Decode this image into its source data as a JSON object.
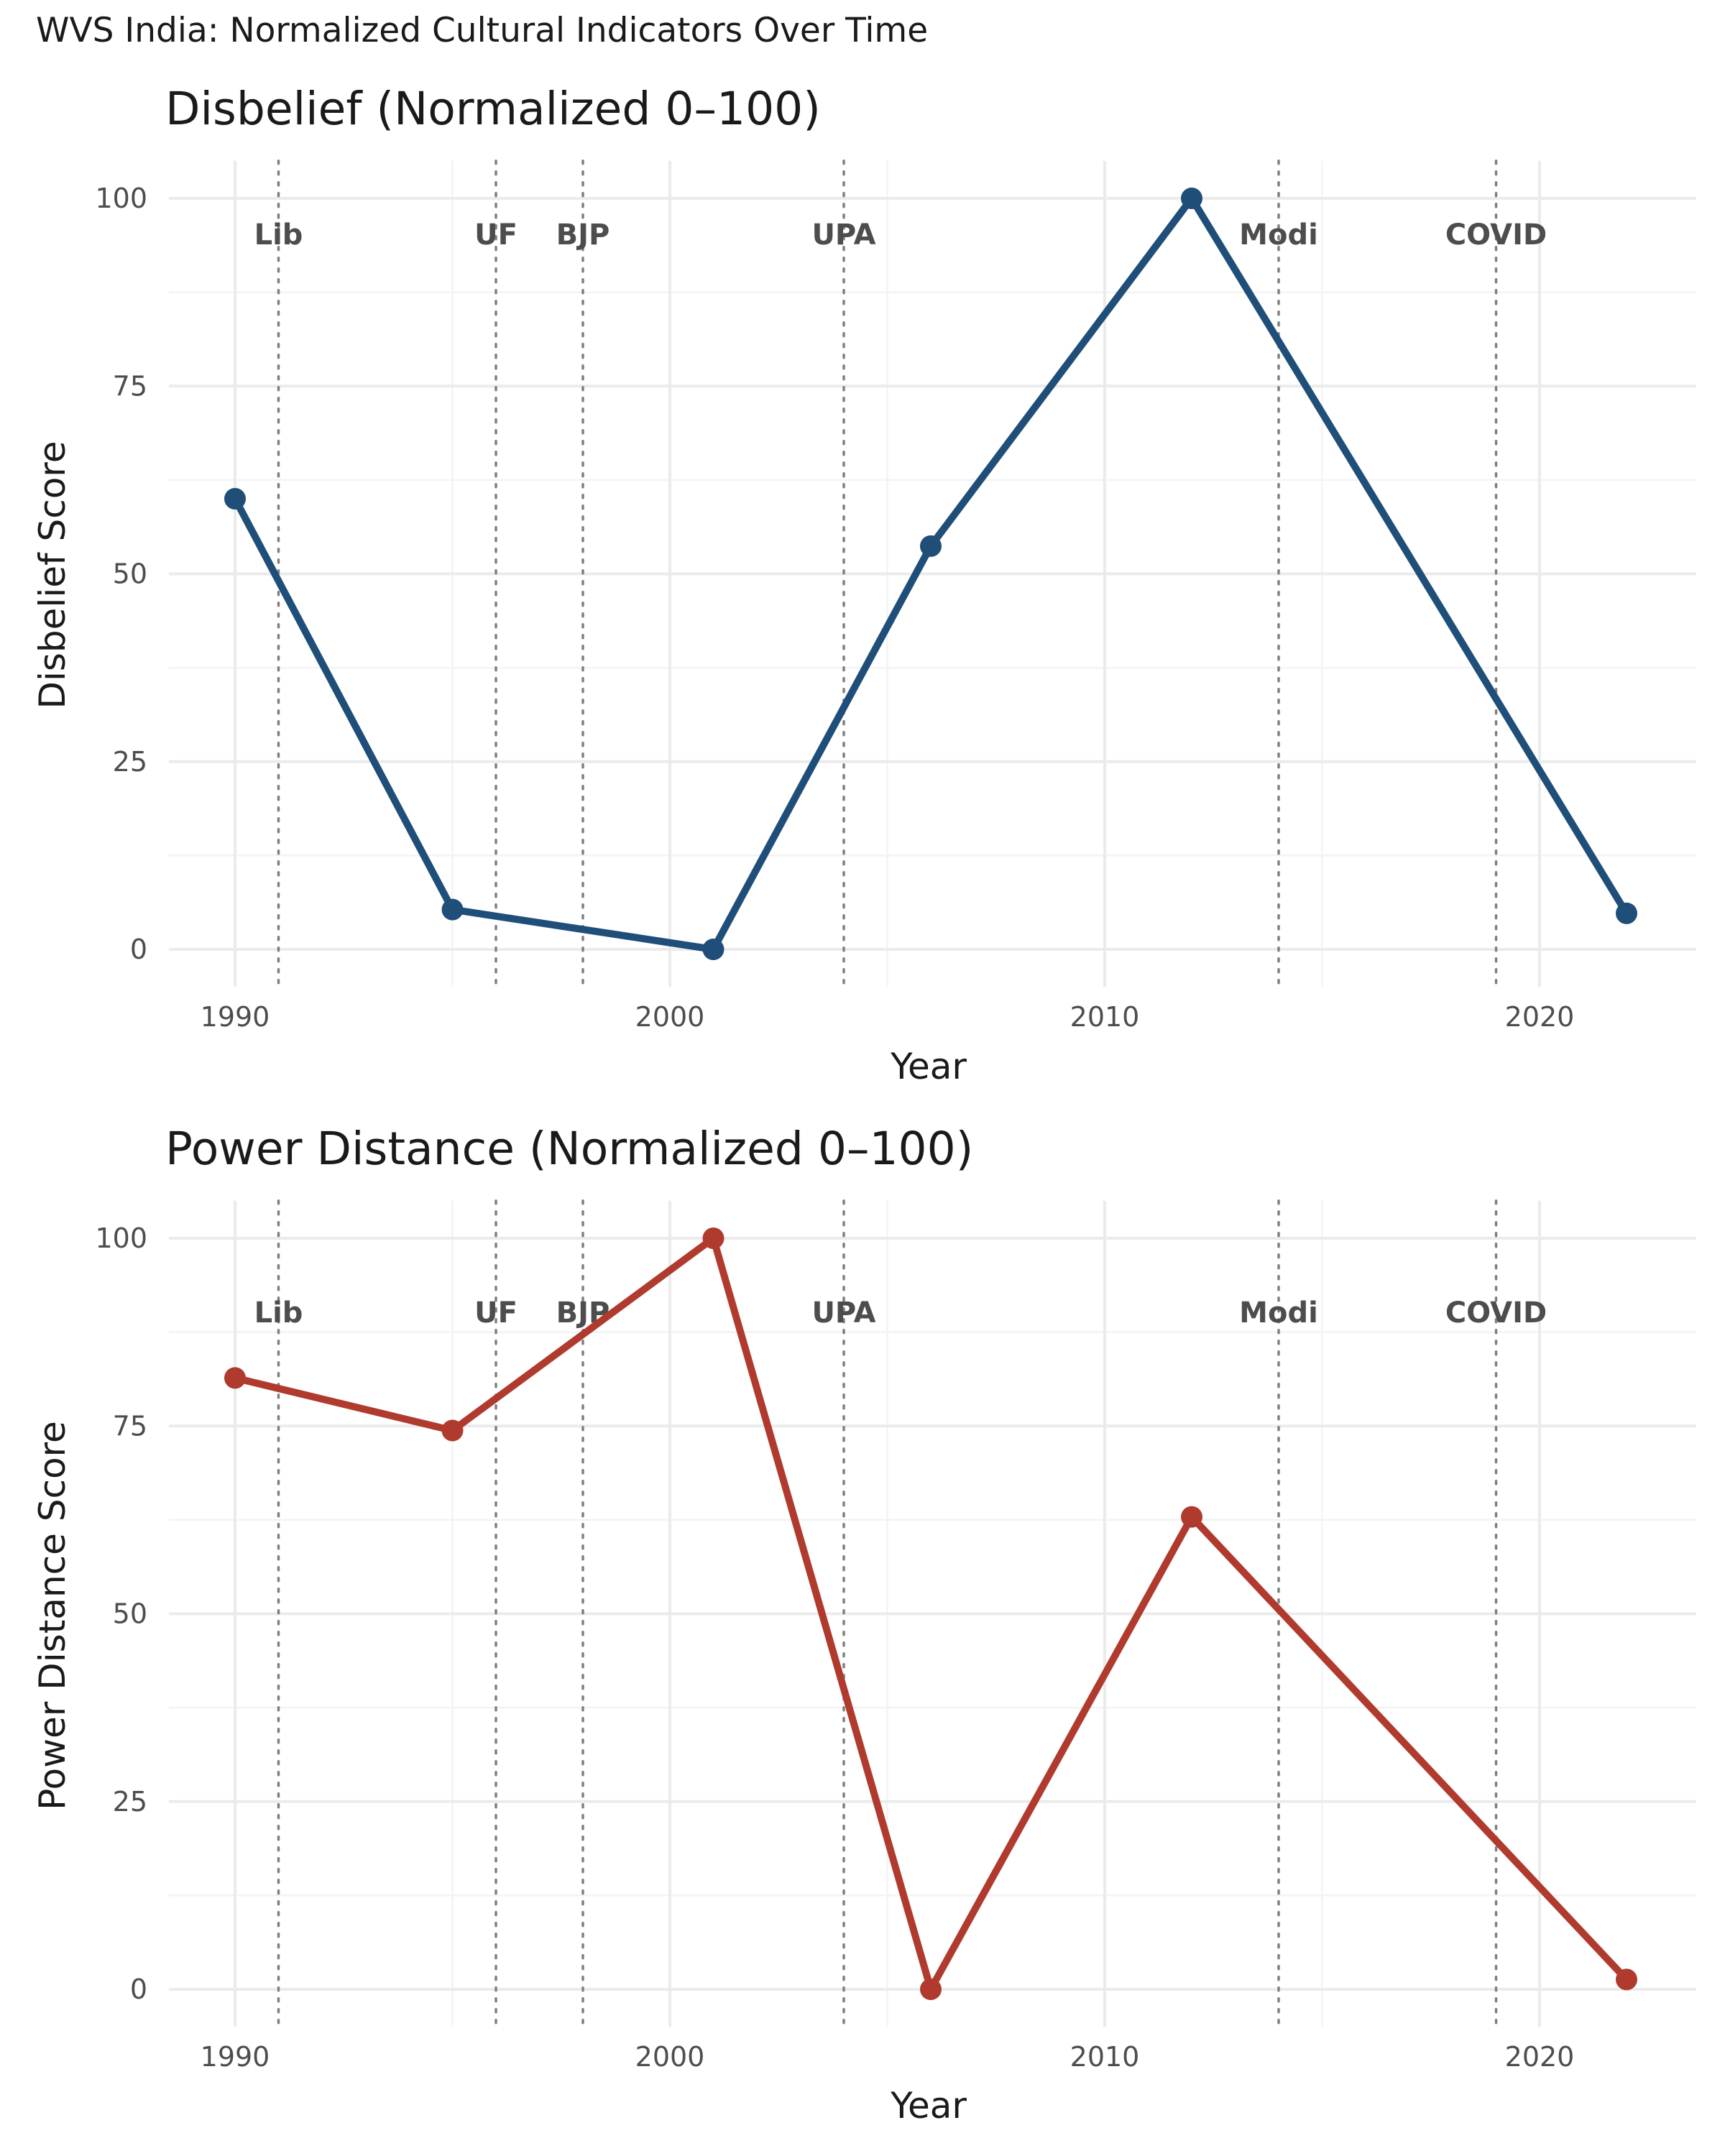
{
  "suptitle": "WVS India: Normalized Cultural Indicators Over Time",
  "chart_data": [
    {
      "type": "line",
      "title": "Disbelief (Normalized 0–100)",
      "xlabel": "Year",
      "ylabel": "Disbelief Score",
      "xlim": [
        1988,
        2023.5
      ],
      "ylim": [
        -5,
        105
      ],
      "xticks": [
        1990,
        2000,
        2010,
        2020
      ],
      "yticks": [
        0,
        25,
        50,
        75,
        100
      ],
      "grid": true,
      "color": "#1f4e79",
      "series": [
        {
          "x": [
            1990,
            1995,
            2001,
            2006,
            2012,
            2022
          ],
          "y": [
            60,
            5.3,
            0,
            53.7,
            100,
            4.8
          ]
        }
      ]
    },
    {
      "type": "line",
      "title": "Power Distance (Normalized 0–100)",
      "xlabel": "Year",
      "ylabel": "Power Distance Score",
      "xlim": [
        1988,
        2023.5
      ],
      "ylim": [
        -5,
        105
      ],
      "xticks": [
        1990,
        2000,
        2010,
        2020
      ],
      "yticks": [
        0,
        25,
        50,
        75,
        100
      ],
      "grid": true,
      "color": "#b03a2e",
      "series": [
        {
          "x": [
            1990,
            1995,
            2001,
            2006,
            2012,
            2022
          ],
          "y": [
            81.4,
            74.4,
            100,
            0,
            62.9,
            1.3
          ]
        }
      ]
    }
  ],
  "events": [
    {
      "year": 1991,
      "label": "Lib"
    },
    {
      "year": 1996,
      "label": "UF"
    },
    {
      "year": 1998,
      "label": "BJP"
    },
    {
      "year": 2004,
      "label": "UPA"
    },
    {
      "year": 2014,
      "label": "Modi"
    },
    {
      "year": 2019,
      "label": "COVID"
    }
  ]
}
